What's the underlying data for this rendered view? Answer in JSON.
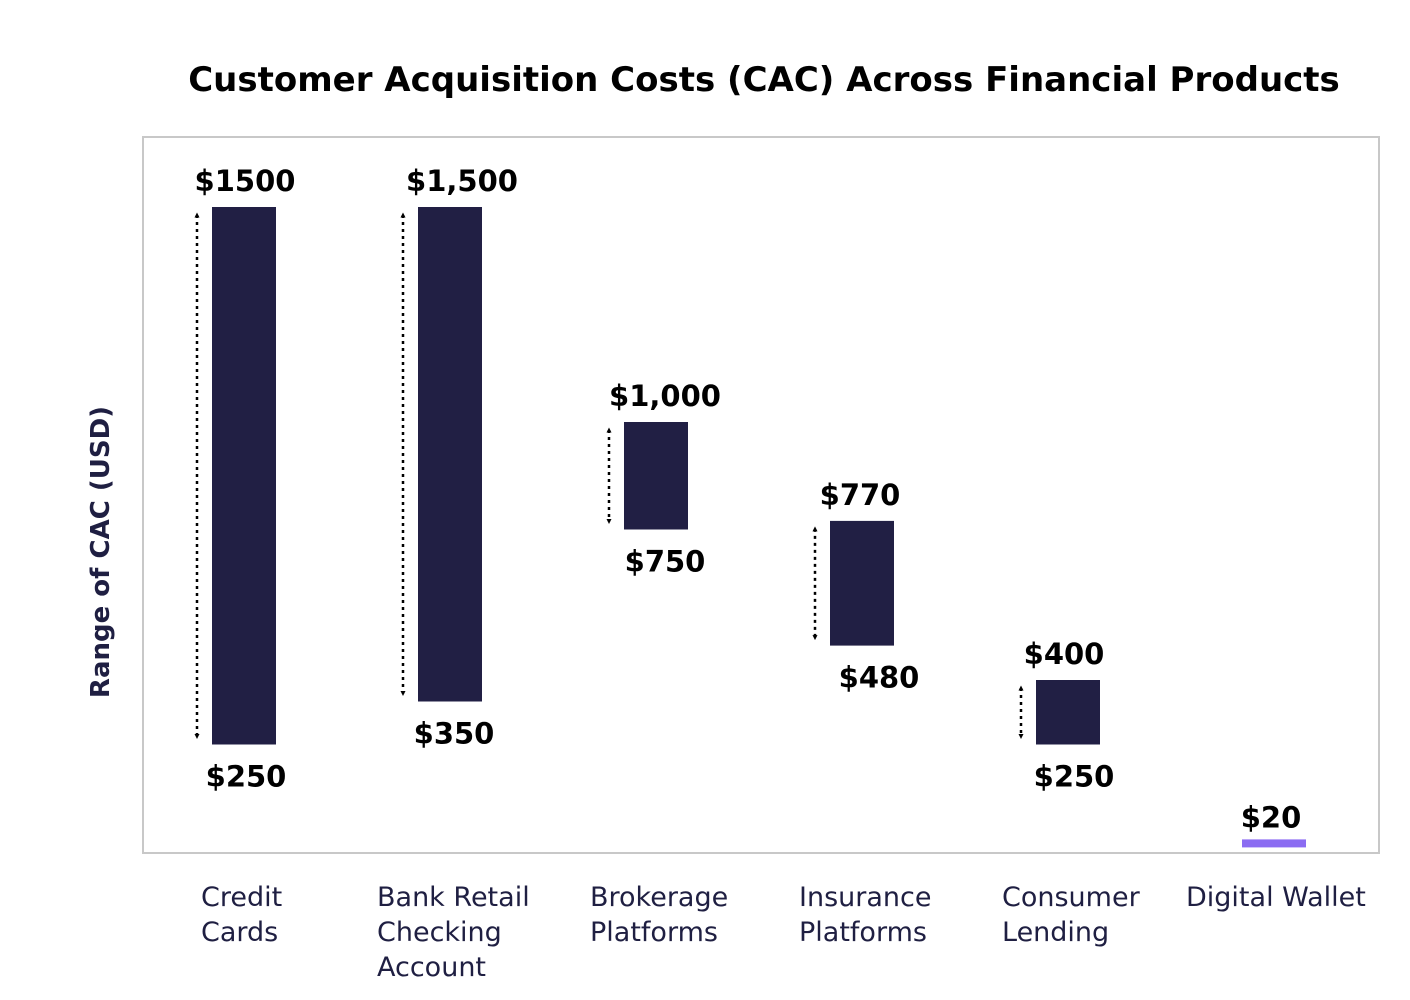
{
  "chart_data": {
    "type": "bar",
    "subtype": "floating-range",
    "title": "Customer Acquisition Costs (CAC) Across Financial Products",
    "ylabel": "Range of CAC (USD)",
    "xlabel": "",
    "categories": [
      [
        "Credit",
        "Cards"
      ],
      [
        "Bank Retail",
        "Checking",
        "Account"
      ],
      [
        "Brokerage",
        "Platforms"
      ],
      [
        "Insurance",
        "Platforms"
      ],
      [
        "Consumer",
        "Lending"
      ],
      [
        "Digital Wallet"
      ]
    ],
    "series": [
      {
        "low": 250,
        "high": 1500,
        "low_label": "$250",
        "high_label": "$1500"
      },
      {
        "low": 350,
        "high": 1500,
        "low_label": "$350",
        "high_label": "$1,500"
      },
      {
        "low": 750,
        "high": 1000,
        "low_label": "$750",
        "high_label": "$1,000"
      },
      {
        "low": 480,
        "high": 770,
        "low_label": "$480",
        "high_label": "$770"
      },
      {
        "low": 250,
        "high": 400,
        "low_label": "$250",
        "high_label": "$400"
      },
      {
        "low": 20,
        "high": 20,
        "low_label": "",
        "high_label": "$20"
      }
    ],
    "colors": {
      "bar": "#211f44",
      "highlight": "#8b6cf2",
      "frame": "#c8c8c8"
    },
    "grid": false,
    "legend": "none"
  }
}
